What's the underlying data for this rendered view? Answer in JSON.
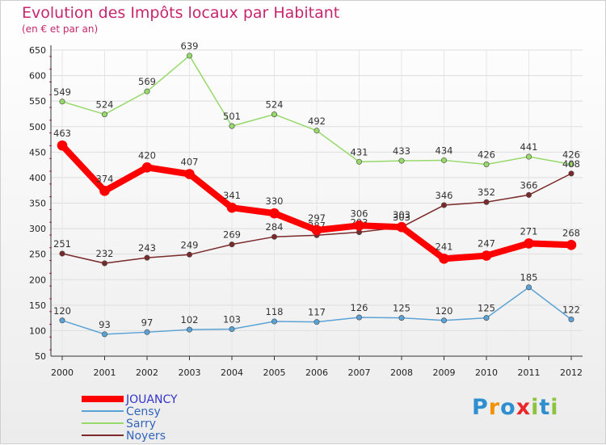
{
  "header": {
    "title": "Evolution des Impôts locaux par Habitant",
    "subtitle": "(en € et par an)"
  },
  "brand": {
    "logo_letters": [
      "P",
      "r",
      "o",
      "x",
      "i",
      "t",
      "i"
    ],
    "logo_colors": [
      "#2e8fd0",
      "#f39200",
      "#2e8fd0",
      "#e8282b",
      "#8dc33f",
      "#2e8fd0",
      "#8dc33f"
    ]
  },
  "chart_data": {
    "type": "line",
    "x": [
      "2000",
      "2001",
      "2002",
      "2003",
      "2004",
      "2005",
      "2006",
      "2007",
      "2008",
      "2009",
      "2010",
      "2011",
      "2012"
    ],
    "ylim": [
      50,
      650
    ],
    "yticks": [
      50,
      100,
      150,
      200,
      250,
      300,
      350,
      400,
      450,
      500,
      550,
      600,
      650
    ],
    "grid": true,
    "legend_position": "bottom-left",
    "series": [
      {
        "name": "JOUANCY",
        "color": "#ff0000",
        "values": [
          463,
          374,
          420,
          407,
          341,
          330,
          297,
          306,
          303,
          241,
          247,
          271,
          268
        ]
      },
      {
        "name": "Censy",
        "color": "#5ba3d6",
        "values": [
          120,
          93,
          97,
          102,
          103,
          118,
          117,
          126,
          125,
          120,
          125,
          185,
          122
        ]
      },
      {
        "name": "Sarry",
        "color": "#97d96a",
        "values": [
          549,
          524,
          569,
          639,
          501,
          524,
          492,
          431,
          433,
          434,
          426,
          441,
          426
        ]
      },
      {
        "name": "Noyers",
        "color": "#7a2a2a",
        "values": [
          251,
          232,
          243,
          249,
          269,
          284,
          287,
          293,
          303,
          346,
          352,
          366,
          408
        ]
      }
    ]
  }
}
